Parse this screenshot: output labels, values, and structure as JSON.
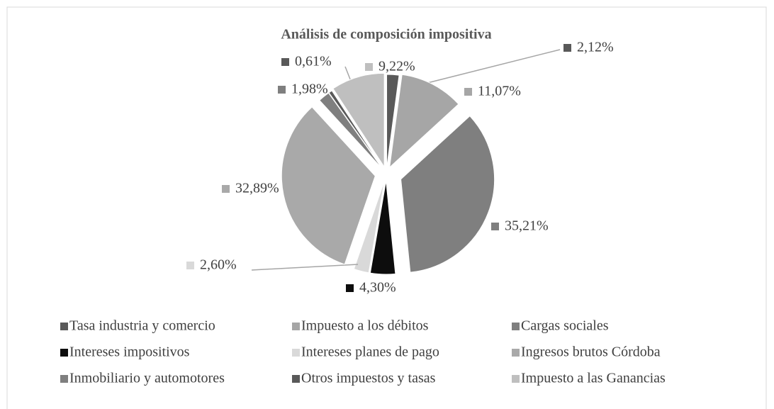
{
  "chart_data": {
    "type": "pie",
    "title": "Análisis de composición impositiva",
    "categories": [
      "Tasa industria y comercio",
      "Impuesto a los débitos",
      "Cargas sociales",
      "Intereses impositivos",
      "Intereses planes de pago",
      "Ingresos brutos Córdoba",
      "Inmobiliario y automotores",
      "Otros impuestos y tasas",
      "Impuesto a las Ganancias"
    ],
    "values": [
      2.12,
      11.07,
      35.21,
      4.3,
      2.6,
      32.89,
      1.98,
      0.61,
      9.22
    ],
    "value_labels": [
      "2,12%",
      "11,07%",
      "35,21%",
      "4,30%",
      "2,60%",
      "32,89%",
      "1,98%",
      "0,61%",
      "9,22%"
    ],
    "colors": [
      "#595959",
      "#a6a6a6",
      "#7f7f7f",
      "#0d0d0d",
      "#d9d9d9",
      "#a9a9a9",
      "#7f7f7f",
      "#595959",
      "#bfbfbf"
    ],
    "legend": "bottom"
  }
}
